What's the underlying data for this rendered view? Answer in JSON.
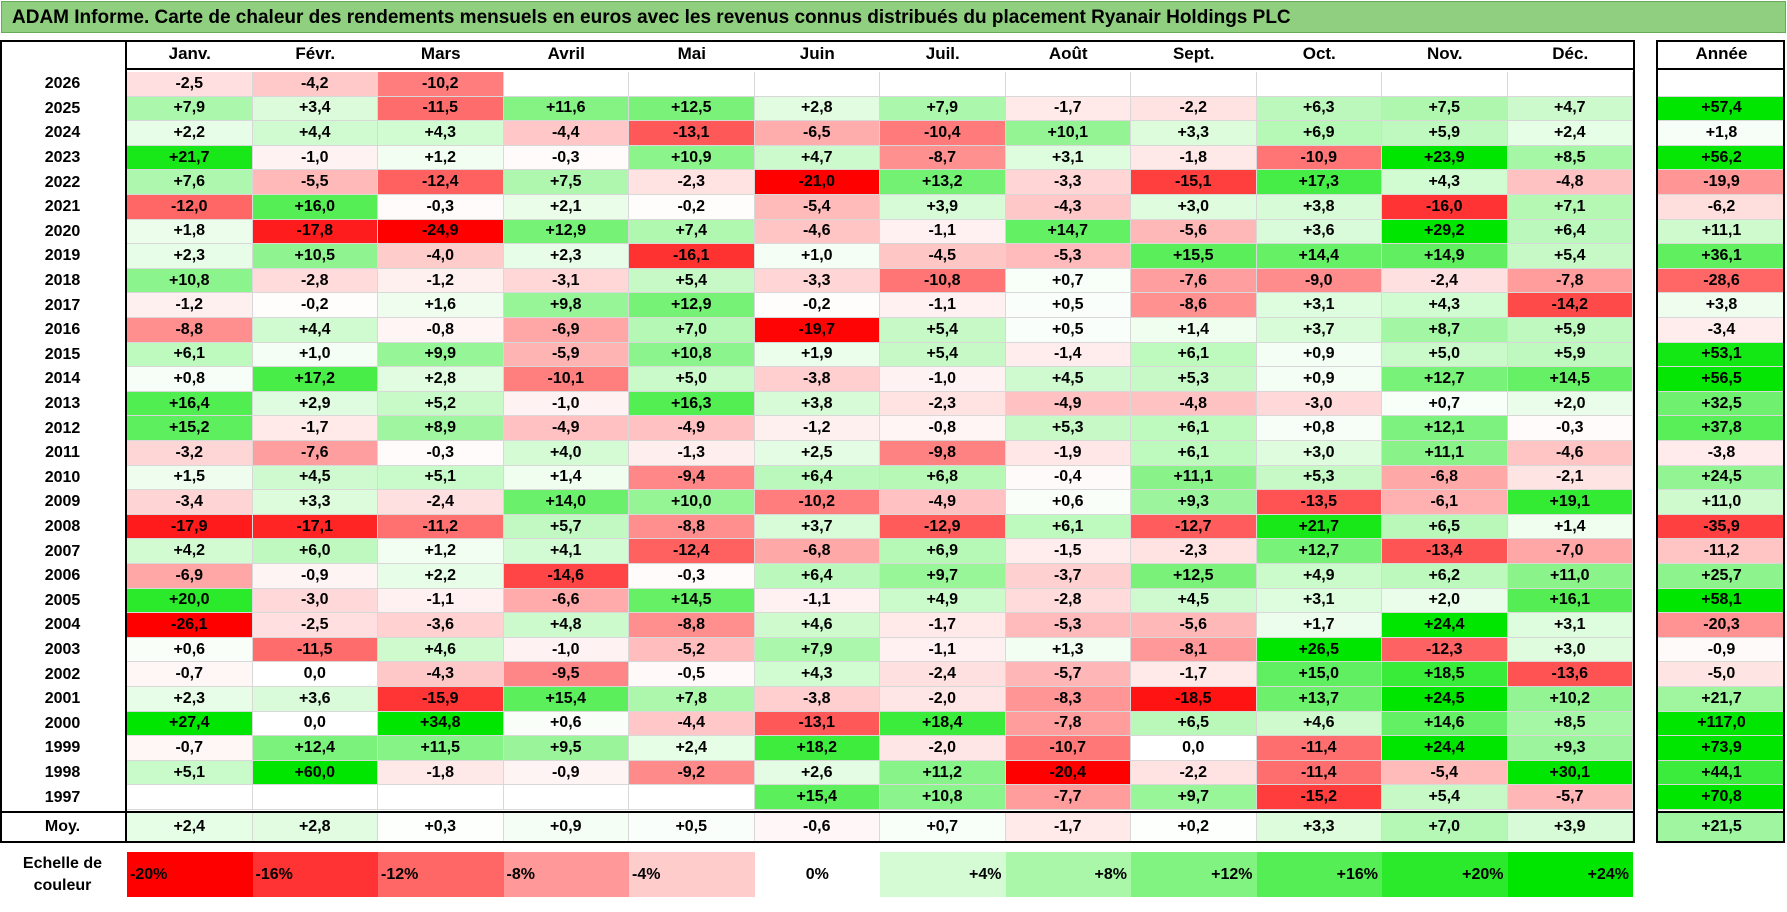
{
  "title": "ADAM Informe. Carte de chaleur des rendements mensuels en euros avec les revenus connus distribués du placement Ryanair Holdings PLC",
  "chart_data": {
    "type": "heatmap",
    "title": "ADAM Informe. Carte de chaleur des rendements mensuels en euros avec les revenus connus distribués du placement Ryanair Holdings PLC",
    "columns": [
      "Janv.",
      "Févr.",
      "Mars",
      "Avril",
      "Mai",
      "Juin",
      "Juil.",
      "Août",
      "Sept.",
      "Oct.",
      "Nov.",
      "Déc."
    ],
    "annual_header": "Année",
    "rows": [
      {
        "year": "2026",
        "values": [
          "-2,5",
          "-4,2",
          "-10,2",
          "",
          "",
          "",
          "",
          "",
          "",
          "",
          "",
          ""
        ],
        "annual": ""
      },
      {
        "year": "2025",
        "values": [
          "+7,9",
          "+3,4",
          "-11,5",
          "+11,6",
          "+12,5",
          "+2,8",
          "+7,9",
          "-1,7",
          "-2,2",
          "+6,3",
          "+7,5",
          "+4,7"
        ],
        "annual": "+57,4"
      },
      {
        "year": "2024",
        "values": [
          "+2,2",
          "+4,4",
          "+4,3",
          "-4,4",
          "-13,1",
          "-6,5",
          "-10,4",
          "+10,1",
          "+3,3",
          "+6,9",
          "+5,9",
          "+2,4"
        ],
        "annual": "+1,8"
      },
      {
        "year": "2023",
        "values": [
          "+21,7",
          "-1,0",
          "+1,2",
          "-0,3",
          "+10,9",
          "+4,7",
          "-8,7",
          "+3,1",
          "-1,8",
          "-10,9",
          "+23,9",
          "+8,5"
        ],
        "annual": "+56,2"
      },
      {
        "year": "2022",
        "values": [
          "+7,6",
          "-5,5",
          "-12,4",
          "+7,5",
          "-2,3",
          "-21,0",
          "+13,2",
          "-3,3",
          "-15,1",
          "+17,3",
          "+4,3",
          "-4,8"
        ],
        "annual": "-19,9"
      },
      {
        "year": "2021",
        "values": [
          "-12,0",
          "+16,0",
          "-0,3",
          "+2,1",
          "-0,2",
          "-5,4",
          "+3,9",
          "-4,3",
          "+3,0",
          "+3,8",
          "-16,0",
          "+7,1"
        ],
        "annual": "-6,2"
      },
      {
        "year": "2020",
        "values": [
          "+1,8",
          "-17,8",
          "-24,9",
          "+12,9",
          "+7,4",
          "-4,6",
          "-1,1",
          "+14,7",
          "-5,6",
          "+3,6",
          "+29,2",
          "+6,4"
        ],
        "annual": "+11,1"
      },
      {
        "year": "2019",
        "values": [
          "+2,3",
          "+10,5",
          "-4,0",
          "+2,3",
          "-16,1",
          "+1,0",
          "-4,5",
          "-5,3",
          "+15,5",
          "+14,4",
          "+14,9",
          "+5,4"
        ],
        "annual": "+36,1"
      },
      {
        "year": "2018",
        "values": [
          "+10,8",
          "-2,8",
          "-1,2",
          "-3,1",
          "+5,4",
          "-3,3",
          "-10,8",
          "+0,7",
          "-7,6",
          "-9,0",
          "-2,4",
          "-7,8"
        ],
        "annual": "-28,6"
      },
      {
        "year": "2017",
        "values": [
          "-1,2",
          "-0,2",
          "+1,6",
          "+9,8",
          "+12,9",
          "-0,2",
          "-1,1",
          "+0,5",
          "-8,6",
          "+3,1",
          "+4,3",
          "-14,2"
        ],
        "annual": "+3,8"
      },
      {
        "year": "2016",
        "values": [
          "-8,8",
          "+4,4",
          "-0,8",
          "-6,9",
          "+7,0",
          "-19,7",
          "+5,4",
          "+0,5",
          "+1,4",
          "+3,7",
          "+8,7",
          "+5,9"
        ],
        "annual": "-3,4"
      },
      {
        "year": "2015",
        "values": [
          "+6,1",
          "+1,0",
          "+9,9",
          "-5,9",
          "+10,8",
          "+1,9",
          "+5,4",
          "-1,4",
          "+6,1",
          "+0,9",
          "+5,0",
          "+5,9"
        ],
        "annual": "+53,1"
      },
      {
        "year": "2014",
        "values": [
          "+0,8",
          "+17,2",
          "+2,8",
          "-10,1",
          "+5,0",
          "-3,8",
          "-1,0",
          "+4,5",
          "+5,3",
          "+0,9",
          "+12,7",
          "+14,5"
        ],
        "annual": "+56,5"
      },
      {
        "year": "2013",
        "values": [
          "+16,4",
          "+2,9",
          "+5,2",
          "-1,0",
          "+16,3",
          "+3,8",
          "-2,3",
          "-4,9",
          "-4,8",
          "-3,0",
          "+0,7",
          "+2,0"
        ],
        "annual": "+32,5"
      },
      {
        "year": "2012",
        "values": [
          "+15,2",
          "-1,7",
          "+8,9",
          "-4,9",
          "-4,9",
          "-1,2",
          "-0,8",
          "+5,3",
          "+6,1",
          "+0,8",
          "+12,1",
          "-0,3"
        ],
        "annual": "+37,8"
      },
      {
        "year": "2011",
        "values": [
          "-3,2",
          "-7,6",
          "-0,3",
          "+4,0",
          "-1,3",
          "+2,5",
          "-9,8",
          "-1,9",
          "+6,1",
          "+3,0",
          "+11,1",
          "-4,6"
        ],
        "annual": "-3,8"
      },
      {
        "year": "2010",
        "values": [
          "+1,5",
          "+4,5",
          "+5,1",
          "+1,4",
          "-9,4",
          "+6,4",
          "+6,8",
          "-0,4",
          "+11,1",
          "+5,3",
          "-6,8",
          "-2,1"
        ],
        "annual": "+24,5"
      },
      {
        "year": "2009",
        "values": [
          "-3,4",
          "+3,3",
          "-2,4",
          "+14,0",
          "+10,0",
          "-10,2",
          "-4,9",
          "+0,6",
          "+9,3",
          "-13,5",
          "-6,1",
          "+19,1"
        ],
        "annual": "+11,0"
      },
      {
        "year": "2008",
        "values": [
          "-17,9",
          "-17,1",
          "-11,2",
          "+5,7",
          "-8,8",
          "+3,7",
          "-12,9",
          "+6,1",
          "-12,7",
          "+21,7",
          "+6,5",
          "+1,4"
        ],
        "annual": "-35,9"
      },
      {
        "year": "2007",
        "values": [
          "+4,2",
          "+6,0",
          "+1,2",
          "+4,1",
          "-12,4",
          "-6,8",
          "+6,9",
          "-1,5",
          "-2,3",
          "+12,7",
          "-13,4",
          "-7,0"
        ],
        "annual": "-11,2"
      },
      {
        "year": "2006",
        "values": [
          "-6,9",
          "-0,9",
          "+2,2",
          "-14,6",
          "-0,3",
          "+6,4",
          "+9,7",
          "-3,7",
          "+12,5",
          "+4,9",
          "+6,2",
          "+11,0"
        ],
        "annual": "+25,7"
      },
      {
        "year": "2005",
        "values": [
          "+20,0",
          "-3,0",
          "-1,1",
          "-6,6",
          "+14,5",
          "-1,1",
          "+4,9",
          "-2,8",
          "+4,5",
          "+3,1",
          "+2,0",
          "+16,1"
        ],
        "annual": "+58,1"
      },
      {
        "year": "2004",
        "values": [
          "-26,1",
          "-2,5",
          "-3,6",
          "+4,8",
          "-8,8",
          "+4,6",
          "-1,7",
          "-5,3",
          "-5,6",
          "+1,7",
          "+24,4",
          "+3,1"
        ],
        "annual": "-20,3"
      },
      {
        "year": "2003",
        "values": [
          "+0,6",
          "-11,5",
          "+4,6",
          "-1,0",
          "-5,2",
          "+7,9",
          "-1,1",
          "+1,3",
          "-8,1",
          "+26,5",
          "-12,3",
          "+3,0"
        ],
        "annual": "-0,9"
      },
      {
        "year": "2002",
        "values": [
          "-0,7",
          "0,0",
          "-4,3",
          "-9,5",
          "-0,5",
          "+4,3",
          "-2,4",
          "-5,7",
          "-1,7",
          "+15,0",
          "+18,5",
          "-13,6"
        ],
        "annual": "-5,0"
      },
      {
        "year": "2001",
        "values": [
          "+2,3",
          "+3,6",
          "-15,9",
          "+15,4",
          "+7,8",
          "-3,8",
          "-2,0",
          "-8,3",
          "-18,5",
          "+13,7",
          "+24,5",
          "+10,2"
        ],
        "annual": "+21,7"
      },
      {
        "year": "2000",
        "values": [
          "+27,4",
          "0,0",
          "+34,8",
          "+0,6",
          "-4,4",
          "-13,1",
          "+18,4",
          "-7,8",
          "+6,5",
          "+4,6",
          "+14,6",
          "+8,5"
        ],
        "annual": "+117,0"
      },
      {
        "year": "1999",
        "values": [
          "-0,7",
          "+12,4",
          "+11,5",
          "+9,5",
          "+2,4",
          "+18,2",
          "-2,0",
          "-10,7",
          "0,0",
          "-11,4",
          "+24,4",
          "+9,3"
        ],
        "annual": "+73,9"
      },
      {
        "year": "1998",
        "values": [
          "+5,1",
          "+60,0",
          "-1,8",
          "-0,9",
          "-9,2",
          "+2,6",
          "+11,2",
          "-20,4",
          "-2,2",
          "-11,4",
          "-5,4",
          "+30,1"
        ],
        "annual": "+44,1"
      },
      {
        "year": "1997",
        "values": [
          "",
          "",
          "",
          "",
          "",
          "+15,4",
          "+10,8",
          "-7,7",
          "+9,7",
          "-15,2",
          "+5,4",
          "-5,7"
        ],
        "annual": "+70,8"
      }
    ],
    "average": {
      "label": "Moy.",
      "values": [
        "+2,4",
        "+2,8",
        "+0,3",
        "+0,9",
        "+0,5",
        "-0,6",
        "+0,7",
        "-1,7",
        "+0,2",
        "+3,3",
        "+7,0",
        "+3,9"
      ],
      "annual": "+21,5"
    },
    "scale": {
      "label_line1": "Echelle de",
      "label_line2": "couleur",
      "stops": [
        "-20%",
        "-16%",
        "-12%",
        "-8%",
        "-4%",
        "0%",
        "+4%",
        "+8%",
        "+12%",
        "+16%",
        "+20%",
        "+24%"
      ]
    }
  }
}
